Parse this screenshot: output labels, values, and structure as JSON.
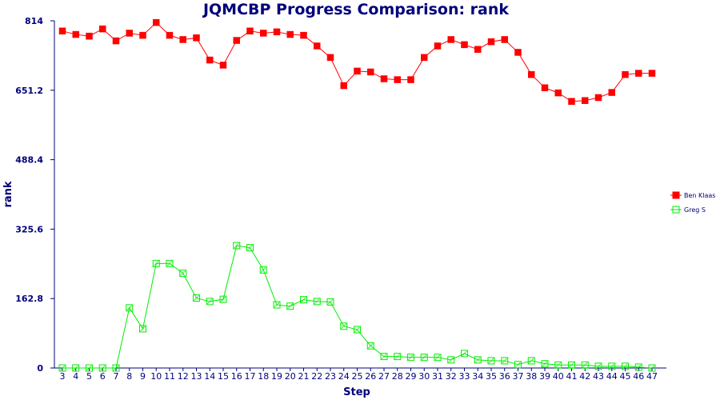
{
  "chart_data": {
    "type": "line",
    "title": "JQMCBP Progress Comparison: rank",
    "xlabel": "Step",
    "ylabel": "rank",
    "x": [
      3,
      4,
      5,
      6,
      7,
      8,
      9,
      10,
      11,
      12,
      13,
      14,
      15,
      16,
      17,
      18,
      19,
      20,
      21,
      22,
      23,
      24,
      25,
      26,
      27,
      28,
      29,
      30,
      31,
      32,
      33,
      34,
      35,
      36,
      37,
      38,
      39,
      40,
      41,
      42,
      43,
      44,
      45,
      46,
      47
    ],
    "ylim": [
      0,
      814
    ],
    "yticks": [
      "0",
      "162.8",
      "325.6",
      "488.4",
      "651.2",
      "814"
    ],
    "grid": false,
    "legend_position": "right",
    "series": [
      {
        "name": "Ben Klaas",
        "color": "#ff0000",
        "marker": "filled-square",
        "values": [
          790,
          782,
          778,
          795,
          767,
          785,
          780,
          810,
          780,
          770,
          774,
          722,
          710,
          768,
          790,
          785,
          788,
          782,
          780,
          755,
          728,
          662,
          696,
          694,
          678,
          676,
          676,
          728,
          755,
          770,
          758,
          747,
          765,
          770,
          740,
          688,
          657,
          645,
          625,
          627,
          634,
          646,
          688,
          691,
          691
        ]
      },
      {
        "name": "Greg S",
        "color": "#00ee00",
        "marker": "hollow-square",
        "values": [
          0,
          0,
          0,
          0,
          0,
          141,
          92,
          245,
          245,
          222,
          164,
          156,
          161,
          287,
          282,
          230,
          148,
          145,
          160,
          156,
          155,
          98,
          90,
          52,
          27,
          27,
          25,
          25,
          25,
          19,
          34,
          19,
          17,
          17,
          8,
          17,
          10,
          7,
          7,
          7,
          4,
          4,
          4,
          2,
          0
        ]
      }
    ]
  }
}
